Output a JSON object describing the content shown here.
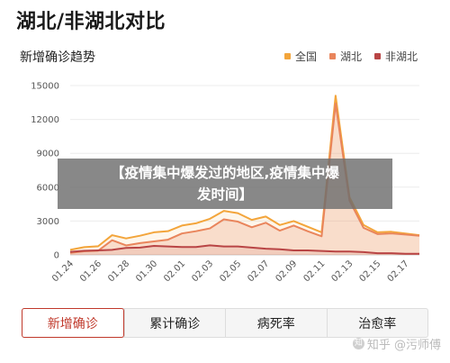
{
  "header": {
    "title": "湖北/非湖北对比",
    "subtitle": "新增确诊趋势"
  },
  "overlay": {
    "line1": "【疫情集中爆发过的地区,疫情集中爆",
    "line2": "发时间】"
  },
  "tabs": [
    {
      "label": "新增确诊",
      "active": true
    },
    {
      "label": "累计确诊",
      "active": false
    },
    {
      "label": "病死率",
      "active": false
    },
    {
      "label": "治愈率",
      "active": false
    }
  ],
  "watermark": {
    "text": "知乎 @污师傅"
  },
  "colors": {
    "national": "#f3a53b",
    "hubei": "#e9855c",
    "non_hubei": "#b94545",
    "active_tab": "#c0392b"
  },
  "chart_data": {
    "type": "area",
    "title": "新增确诊趋势",
    "x": [
      "01.24",
      "01.25",
      "01.26",
      "01.27",
      "01.28",
      "01.29",
      "01.30",
      "01.31",
      "02.01",
      "02.02",
      "02.03",
      "02.04",
      "02.05",
      "02.06",
      "02.07",
      "02.08",
      "02.09",
      "02.10",
      "02.11",
      "02.12",
      "02.13",
      "02.14",
      "02.15",
      "02.16",
      "02.17",
      "02.18"
    ],
    "x_tick_labels": [
      "01.24",
      "01.26",
      "01.28",
      "01.30",
      "02.01",
      "02.03",
      "02.05",
      "02.07",
      "02.09",
      "02.11",
      "02.13",
      "02.15",
      "02.17"
    ],
    "ylim": [
      0,
      15000
    ],
    "y_ticks": [
      0,
      3000,
      6000,
      9000,
      12000,
      15000
    ],
    "grid": true,
    "legend_position": "top-right",
    "series": [
      {
        "name": "全国",
        "values": [
          450,
          690,
          770,
          1750,
          1460,
          1700,
          2000,
          2100,
          2600,
          2800,
          3200,
          3900,
          3700,
          3100,
          3400,
          2650,
          3000,
          2500,
          2000,
          14100,
          5100,
          2650,
          2000,
          2050,
          1900,
          1750
        ]
      },
      {
        "name": "湖北",
        "values": [
          180,
          320,
          370,
          1300,
          840,
          1050,
          1200,
          1350,
          1900,
          2100,
          2350,
          3150,
          2950,
          2450,
          2850,
          2150,
          2600,
          2100,
          1650,
          13400,
          4800,
          2400,
          1850,
          1900,
          1800,
          1700
        ]
      },
      {
        "name": "非湖北",
        "values": [
          270,
          370,
          400,
          450,
          620,
          650,
          800,
          750,
          700,
          700,
          850,
          750,
          750,
          650,
          550,
          500,
          400,
          400,
          350,
          300,
          300,
          250,
          150,
          150,
          100,
          100
        ]
      }
    ]
  }
}
